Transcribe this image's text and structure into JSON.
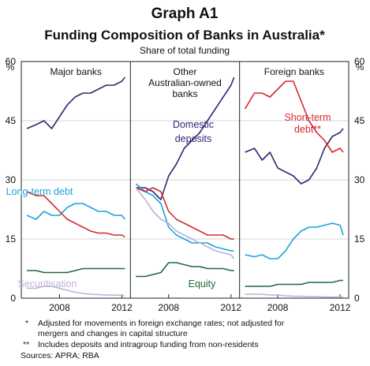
{
  "header": {
    "graph_id": "Graph A1",
    "title": "Funding Composition of Banks in Australia*",
    "subtitle": "Share of total funding",
    "unit_left": "%",
    "unit_right": "%"
  },
  "footnotes": {
    "note1_marker": "*",
    "note1_line1": "Adjusted for movements in foreign exchange rates; not adjusted for",
    "note1_line2": "mergers and changes in capital structure",
    "note2_marker": "**",
    "note2_line1": "Includes deposits and intragroup funding from non-residents",
    "sources": "Sources: APRA; RBA"
  },
  "chart_data": {
    "type": "line",
    "ylim": [
      0,
      60
    ],
    "yticks": [
      0,
      15,
      30,
      45,
      60
    ],
    "x_range": [
      2005.7,
      2012.4
    ],
    "xticks": [
      2008,
      2012
    ],
    "xtick_labels": [
      "2008",
      "2012"
    ],
    "grid": true,
    "colors": {
      "Domestic deposits": "#2e2a73",
      "Long-term debt": "#1fa3dc",
      "Short-term debt": "#d42a2f",
      "Equity": "#1e6a3a",
      "Securitisation": "#b9b3d6"
    },
    "panels": [
      {
        "title_lines": [
          "Major banks"
        ],
        "labels": [
          {
            "text": "Long-term debt",
            "color": "#1fa3dc"
          },
          {
            "text": "Securitisation",
            "color": "#b9b3d6"
          }
        ],
        "series": [
          {
            "key": "Domestic deposits",
            "x": [
              2005.9,
              2006.5,
              2007.0,
              2007.5,
              2008.0,
              2008.5,
              2009.0,
              2009.5,
              2010.0,
              2010.5,
              2011.0,
              2011.5,
              2012.0,
              2012.2
            ],
            "y": [
              43,
              44,
              45,
              43,
              46,
              49,
              51,
              52,
              52,
              53,
              54,
              54,
              55,
              56
            ]
          },
          {
            "key": "Long-term debt",
            "x": [
              2005.9,
              2006.5,
              2007.0,
              2007.5,
              2008.0,
              2008.5,
              2009.0,
              2009.5,
              2010.0,
              2010.5,
              2011.0,
              2011.5,
              2012.0,
              2012.2
            ],
            "y": [
              21,
              20,
              22,
              21,
              21,
              23,
              24,
              24,
              23,
              22,
              22,
              21,
              21,
              20
            ]
          },
          {
            "key": "Short-term debt",
            "x": [
              2005.9,
              2006.5,
              2007.0,
              2007.5,
              2008.0,
              2008.5,
              2009.0,
              2009.5,
              2010.0,
              2010.5,
              2011.0,
              2011.5,
              2012.0,
              2012.2
            ],
            "y": [
              27,
              26,
              26,
              24,
              22,
              20,
              19,
              18,
              17,
              16.5,
              16.5,
              16,
              16,
              15.5
            ]
          },
          {
            "key": "Equity",
            "x": [
              2005.9,
              2006.5,
              2007.0,
              2007.5,
              2008.0,
              2008.5,
              2009.0,
              2009.5,
              2010.0,
              2010.5,
              2011.0,
              2011.5,
              2012.0,
              2012.2
            ],
            "y": [
              7,
              7,
              6.5,
              6.5,
              6.5,
              6.5,
              7,
              7.5,
              7.5,
              7.5,
              7.5,
              7.5,
              7.5,
              7.5
            ]
          },
          {
            "key": "Securitisation",
            "x": [
              2005.9,
              2006.5,
              2007.0,
              2007.5,
              2008.0,
              2008.5,
              2009.0,
              2009.5,
              2010.0,
              2010.5,
              2011.0,
              2011.5,
              2012.0,
              2012.2
            ],
            "y": [
              2.5,
              2.5,
              3,
              3,
              2.5,
              2,
              1.5,
              1.2,
              1,
              0.9,
              0.8,
              0.8,
              0.7,
              0.6
            ]
          }
        ]
      },
      {
        "title_lines": [
          "Other",
          "Australian-owned",
          "banks"
        ],
        "labels": [
          {
            "text": "Domestic",
            "color": "#2e2a73"
          },
          {
            "text": "deposits",
            "color": "#2e2a73"
          },
          {
            "text": "Equity",
            "color": "#1e6a3a"
          }
        ],
        "series": [
          {
            "key": "Domestic deposits",
            "x": [
              2005.9,
              2006.5,
              2007.0,
              2007.5,
              2008.0,
              2008.5,
              2009.0,
              2009.5,
              2010.0,
              2010.5,
              2011.0,
              2011.5,
              2012.0,
              2012.2
            ],
            "y": [
              28,
              28,
              27,
              25,
              31,
              34,
              38,
              40,
              42,
              45,
              48,
              51,
              54,
              56
            ]
          },
          {
            "key": "Long-term debt",
            "x": [
              2005.9,
              2006.5,
              2007.0,
              2007.5,
              2008.0,
              2008.5,
              2009.0,
              2009.5,
              2010.0,
              2010.5,
              2011.0,
              2011.5,
              2012.0,
              2012.2
            ],
            "y": [
              29,
              27,
              26,
              24,
              18,
              16,
              15,
              14,
              14,
              14,
              13,
              12.5,
              12,
              12
            ]
          },
          {
            "key": "Short-term debt",
            "x": [
              2005.9,
              2006.5,
              2007.0,
              2007.5,
              2008.0,
              2008.5,
              2009.0,
              2009.5,
              2010.0,
              2010.5,
              2011.0,
              2011.5,
              2012.0,
              2012.2
            ],
            "y": [
              28,
              27,
              28,
              27,
              22,
              20,
              19,
              18,
              17,
              16,
              16,
              16,
              15,
              15
            ]
          },
          {
            "key": "Equity",
            "x": [
              2005.9,
              2006.5,
              2007.0,
              2007.5,
              2008.0,
              2008.5,
              2009.0,
              2009.5,
              2010.0,
              2010.5,
              2011.0,
              2011.5,
              2012.0,
              2012.2
            ],
            "y": [
              5.5,
              5.5,
              6,
              6.5,
              9,
              9,
              8.5,
              8,
              8,
              7.5,
              7.5,
              7.5,
              7,
              7
            ]
          },
          {
            "key": "Securitisation",
            "x": [
              2005.9,
              2006.5,
              2007.0,
              2007.5,
              2008.0,
              2008.5,
              2009.0,
              2009.5,
              2010.0,
              2010.5,
              2011.0,
              2011.5,
              2012.0,
              2012.2
            ],
            "y": [
              28,
              25,
              22,
              20,
              19,
              17,
              16,
              15,
              14,
              13,
              12,
              11.5,
              11,
              10
            ]
          }
        ]
      },
      {
        "title_lines": [
          "Foreign banks"
        ],
        "labels": [
          {
            "text": "Short-term",
            "color": "#d42a2f"
          },
          {
            "text": "debt**",
            "color": "#d42a2f"
          }
        ],
        "series": [
          {
            "key": "Domestic deposits",
            "x": [
              2005.9,
              2006.5,
              2007.0,
              2007.5,
              2008.0,
              2008.5,
              2009.0,
              2009.5,
              2010.0,
              2010.5,
              2011.0,
              2011.5,
              2012.0,
              2012.2
            ],
            "y": [
              37,
              38,
              35,
              37,
              33,
              32,
              31,
              29,
              30,
              33,
              38,
              41,
              42,
              43
            ]
          },
          {
            "key": "Long-term debt",
            "x": [
              2005.9,
              2006.5,
              2007.0,
              2007.5,
              2008.0,
              2008.5,
              2009.0,
              2009.5,
              2010.0,
              2010.5,
              2011.0,
              2011.5,
              2012.0,
              2012.2
            ],
            "y": [
              11,
              10.5,
              11,
              10,
              10,
              12,
              15,
              17,
              18,
              18,
              18.5,
              19,
              18.5,
              16
            ]
          },
          {
            "key": "Short-term debt",
            "x": [
              2005.9,
              2006.5,
              2007.0,
              2007.5,
              2008.0,
              2008.5,
              2009.0,
              2009.5,
              2010.0,
              2010.5,
              2011.0,
              2011.5,
              2012.0,
              2012.2
            ],
            "y": [
              48,
              52,
              52,
              51,
              53,
              55,
              55,
              50,
              45,
              42,
              40,
              37,
              38,
              37
            ]
          },
          {
            "key": "Equity",
            "x": [
              2005.9,
              2006.5,
              2007.0,
              2007.5,
              2008.0,
              2008.5,
              2009.0,
              2009.5,
              2010.0,
              2010.5,
              2011.0,
              2011.5,
              2012.0,
              2012.2
            ],
            "y": [
              3,
              3,
              3,
              3,
              3.5,
              3.5,
              3.5,
              3.5,
              4,
              4,
              4,
              4,
              4.5,
              4.5
            ]
          },
          {
            "key": "Securitisation",
            "x": [
              2005.9,
              2006.5,
              2007.0,
              2007.5,
              2008.0,
              2008.5,
              2009.0,
              2009.5,
              2010.0,
              2010.5,
              2011.0,
              2011.5,
              2012.0,
              2012.2
            ],
            "y": [
              1,
              1,
              1,
              0.8,
              0.8,
              0.6,
              0.5,
              0.5,
              0.4,
              0.4,
              0.3,
              0.3,
              0.3,
              0.3
            ]
          }
        ]
      }
    ]
  }
}
